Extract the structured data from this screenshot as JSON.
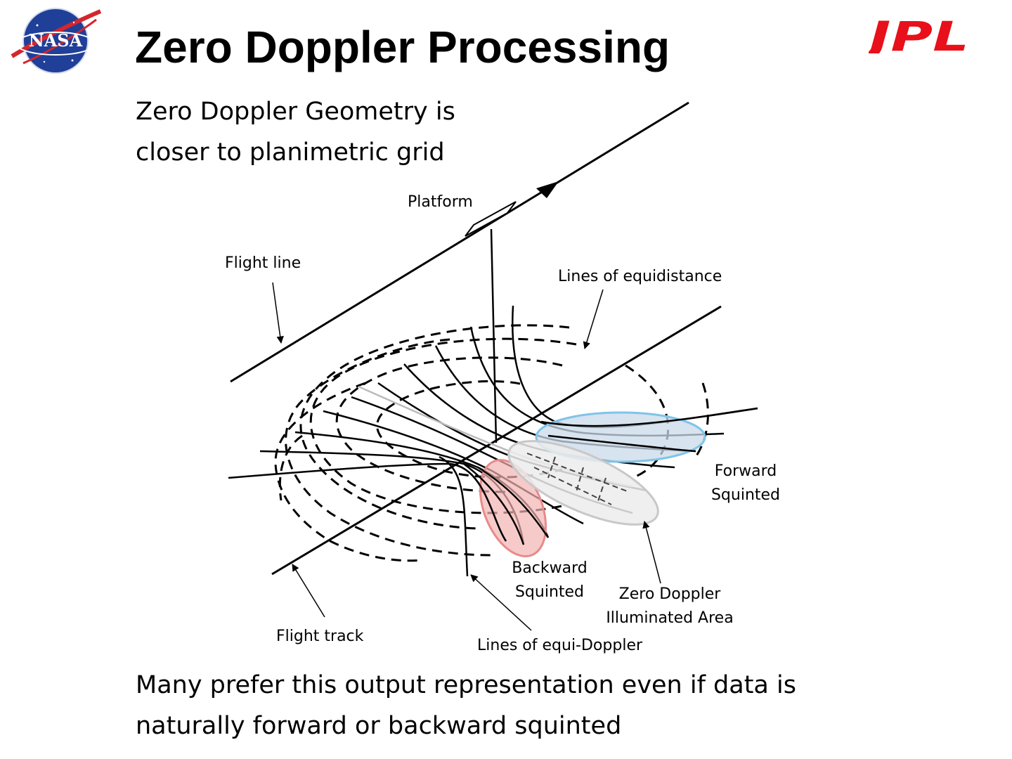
{
  "slide": {
    "title": "Zero Doppler Processing",
    "subtitle_line1": "Zero Doppler Geometry is",
    "subtitle_line2": "closer to planimetric grid",
    "footer_line1": "Many prefer this output representation even if data is",
    "footer_line2": "naturally forward or backward squinted"
  },
  "logos": {
    "nasa": "NASA",
    "jpl": "JPL"
  },
  "diagram": {
    "labels": {
      "platform": "Platform",
      "flight_line": "Flight line",
      "lines_of_equidistance": "Lines of equidistance",
      "flight_track": "Flight track",
      "lines_of_equi_doppler": "Lines of equi-Doppler",
      "forward_squinted_1": "Forward",
      "forward_squinted_2": "Squinted",
      "backward_squinted_1": "Backward",
      "backward_squinted_2": "Squinted",
      "zero_doppler_1": "Zero Doppler",
      "zero_doppler_2": "Illuminated Area"
    },
    "colors": {
      "forward_fill": "#c9d9ea",
      "forward_stroke": "#7fc4e8",
      "backward_fill": "#f4b4b4",
      "backward_stroke": "#e88a8a",
      "zero_fill": "#ececec",
      "zero_stroke": "#c8c8c8",
      "jpl_red": "#e8101a"
    }
  }
}
